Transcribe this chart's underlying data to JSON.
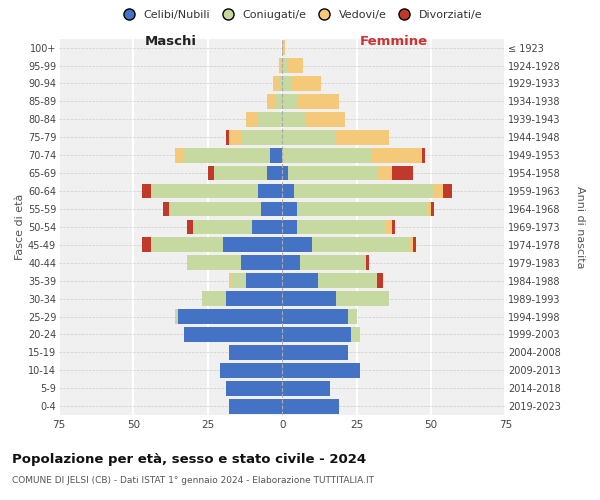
{
  "age_groups": [
    "0-4",
    "5-9",
    "10-14",
    "15-19",
    "20-24",
    "25-29",
    "30-34",
    "35-39",
    "40-44",
    "45-49",
    "50-54",
    "55-59",
    "60-64",
    "65-69",
    "70-74",
    "75-79",
    "80-84",
    "85-89",
    "90-94",
    "95-99",
    "100+"
  ],
  "birth_years": [
    "2019-2023",
    "2014-2018",
    "2009-2013",
    "2004-2008",
    "1999-2003",
    "1994-1998",
    "1989-1993",
    "1984-1988",
    "1979-1983",
    "1974-1978",
    "1969-1973",
    "1964-1968",
    "1959-1963",
    "1954-1958",
    "1949-1953",
    "1944-1948",
    "1939-1943",
    "1934-1938",
    "1929-1933",
    "1924-1928",
    "≤ 1923"
  ],
  "males": {
    "celibi": [
      18,
      19,
      21,
      18,
      33,
      35,
      19,
      12,
      14,
      20,
      10,
      7,
      8,
      5,
      4,
      0,
      0,
      0,
      0,
      0,
      0
    ],
    "coniugati": [
      0,
      0,
      0,
      0,
      0,
      1,
      8,
      5,
      18,
      24,
      20,
      31,
      36,
      18,
      29,
      14,
      8,
      2,
      1,
      0,
      0
    ],
    "vedovi": [
      0,
      0,
      0,
      0,
      0,
      0,
      0,
      1,
      0,
      0,
      0,
      0,
      0,
      0,
      3,
      4,
      4,
      3,
      2,
      1,
      0
    ],
    "divorziati": [
      0,
      0,
      0,
      0,
      0,
      0,
      0,
      0,
      0,
      3,
      2,
      2,
      3,
      2,
      0,
      1,
      0,
      0,
      0,
      0,
      0
    ]
  },
  "females": {
    "nubili": [
      19,
      16,
      26,
      22,
      23,
      22,
      18,
      12,
      6,
      10,
      5,
      5,
      4,
      2,
      0,
      0,
      0,
      0,
      0,
      0,
      0
    ],
    "coniugate": [
      0,
      0,
      0,
      0,
      3,
      3,
      18,
      20,
      22,
      33,
      30,
      44,
      47,
      30,
      30,
      18,
      8,
      5,
      3,
      2,
      0
    ],
    "vedove": [
      0,
      0,
      0,
      0,
      0,
      0,
      0,
      0,
      0,
      1,
      2,
      1,
      3,
      5,
      17,
      18,
      13,
      14,
      10,
      5,
      1
    ],
    "divorziate": [
      0,
      0,
      0,
      0,
      0,
      0,
      0,
      2,
      1,
      1,
      1,
      1,
      3,
      7,
      1,
      0,
      0,
      0,
      0,
      0,
      0
    ]
  },
  "colors": {
    "celibi": "#4472c4",
    "coniugati": "#c5d9a0",
    "vedovi": "#f5c97a",
    "divorziati": "#c0392b"
  },
  "title": "Popolazione per età, sesso e stato civile - 2024",
  "subtitle": "COMUNE DI JELSI (CB) - Dati ISTAT 1° gennaio 2024 - Elaborazione TUTTITALIA.IT",
  "xlabel_left": "Maschi",
  "xlabel_right": "Femmine",
  "ylabel_left": "Fasce di età",
  "ylabel_right": "Anni di nascita",
  "xlim": 75,
  "background_color": "#ffffff",
  "plot_bg_color": "#f0f0f0",
  "legend_labels": [
    "Celibi/Nubili",
    "Coniugati/e",
    "Vedovi/e",
    "Divorziati/e"
  ]
}
